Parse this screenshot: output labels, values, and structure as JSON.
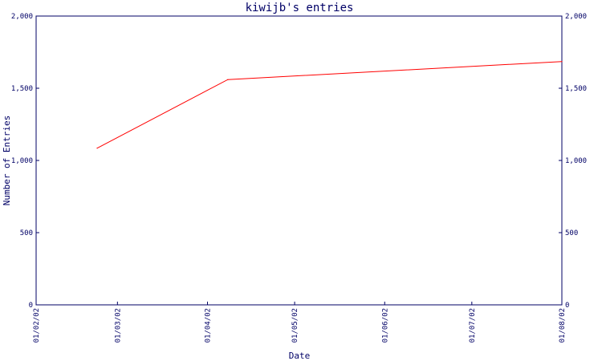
{
  "chart_data": {
    "type": "line",
    "title": "kiwijb's entries",
    "xlabel": "Date",
    "ylabel": "Number of Entries",
    "x_ticks": [
      "01/02/02",
      "01/03/02",
      "01/04/02",
      "01/05/02",
      "01/06/02",
      "01/07/02",
      "01/08/02"
    ],
    "y_ticks": [
      "0",
      "500",
      "1,000",
      "1,500",
      "2,000"
    ],
    "ylim": [
      0,
      2000
    ],
    "xlim": [
      "2002-02-01",
      "2002-08-01"
    ],
    "grid": false,
    "series": [
      {
        "color": "#ff0000",
        "points": [
          {
            "x": "2002-02-22",
            "y": 1085
          },
          {
            "x": "2002-04-08",
            "y": 1560
          },
          {
            "x": "2002-08-01",
            "y": 1685
          }
        ]
      }
    ],
    "colors": {
      "axis": "#000066",
      "line": "#ff0000",
      "background": "#ffffff"
    }
  }
}
